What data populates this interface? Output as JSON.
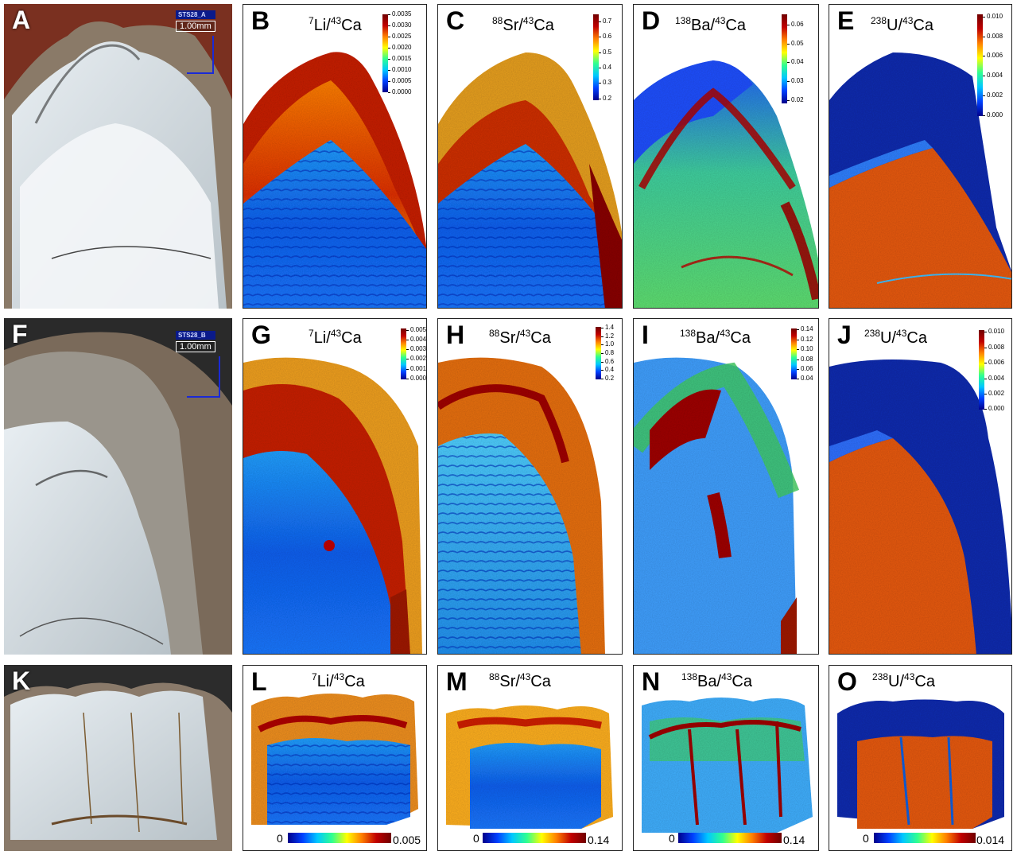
{
  "row1": {
    "A": {
      "letter": "A",
      "sample_id": "STS28_A",
      "scale": "1.00mm"
    },
    "B": {
      "letter": "B",
      "ratio_main": "Li/",
      "ratio_iso1": "7",
      "ratio_iso2": "43",
      "ratio_tail": "Ca",
      "ticks": [
        "0.0035",
        "0.0030",
        "0.0025",
        "0.0020",
        "0.0015",
        "0.0010",
        "0.0005",
        "0.0000"
      ]
    },
    "C": {
      "letter": "C",
      "ratio_main": "Sr/",
      "ratio_iso1": "88",
      "ratio_iso2": "43",
      "ratio_tail": "Ca",
      "ticks": [
        "0.7",
        "0.6",
        "0.5",
        "0.4",
        "0.3",
        "0.2"
      ]
    },
    "D": {
      "letter": "D",
      "ratio_main": "Ba/",
      "ratio_iso1": "138",
      "ratio_iso2": "43",
      "ratio_tail": "Ca",
      "ticks": [
        "0.06",
        "0.05",
        "0.04",
        "0.03",
        "0.02"
      ]
    },
    "E": {
      "letter": "E",
      "ratio_main": "U/",
      "ratio_iso1": "238",
      "ratio_iso2": "43",
      "ratio_tail": "Ca",
      "ticks": [
        "0.010",
        "0.008",
        "0.006",
        "0.004",
        "0.002",
        "0.000"
      ]
    }
  },
  "row2": {
    "F": {
      "letter": "F",
      "sample_id": "STS28_B",
      "scale": "1.00mm"
    },
    "G": {
      "letter": "G",
      "ratio_main": "Li/",
      "ratio_iso1": "7",
      "ratio_iso2": "43",
      "ratio_tail": "Ca",
      "ticks": [
        "0.005",
        "0.004",
        "0.003",
        "0.002",
        "0.001",
        "0.000"
      ]
    },
    "H": {
      "letter": "H",
      "ratio_main": "Sr/",
      "ratio_iso1": "88",
      "ratio_iso2": "43",
      "ratio_tail": "Ca",
      "ticks": [
        "1.4",
        "1.2",
        "1.0",
        "0.8",
        "0.6",
        "0.4",
        "0.2"
      ]
    },
    "I": {
      "letter": "I",
      "ratio_main": "Ba/",
      "ratio_iso1": "138",
      "ratio_iso2": "43",
      "ratio_tail": "Ca",
      "ticks": [
        "0.14",
        "0.12",
        "0.10",
        "0.08",
        "0.06",
        "0.04"
      ]
    },
    "J": {
      "letter": "J",
      "ratio_main": "U/",
      "ratio_iso1": "238",
      "ratio_iso2": "43",
      "ratio_tail": "Ca",
      "ticks": [
        "0.010",
        "0.008",
        "0.006",
        "0.004",
        "0.002",
        "0.000"
      ]
    }
  },
  "row3": {
    "K": {
      "letter": "K"
    },
    "L": {
      "letter": "L",
      "ratio_main": "Li/",
      "ratio_iso1": "7",
      "ratio_iso2": "43",
      "ratio_tail": "Ca",
      "min": "0",
      "max": "0.005"
    },
    "M": {
      "letter": "M",
      "ratio_main": "Sr/",
      "ratio_iso1": "88",
      "ratio_iso2": "43",
      "ratio_tail": "Ca",
      "min": "0",
      "max": "0.14"
    },
    "N": {
      "letter": "N",
      "ratio_main": "Ba/",
      "ratio_iso1": "138",
      "ratio_iso2": "43",
      "ratio_tail": "Ca",
      "min": "0",
      "max": "0.14"
    },
    "O": {
      "letter": "O",
      "ratio_main": "U/",
      "ratio_iso1": "238",
      "ratio_iso2": "43",
      "ratio_tail": "Ca",
      "min": "0",
      "max": "0.014"
    }
  },
  "colors": {
    "low": "#00008b",
    "mid_blue": "#0040ff",
    "cyan": "#00c8ff",
    "green": "#30ff90",
    "yellow": "#ffff00",
    "orange": "#ff8000",
    "red": "#c00000",
    "dark_red": "#700000"
  }
}
